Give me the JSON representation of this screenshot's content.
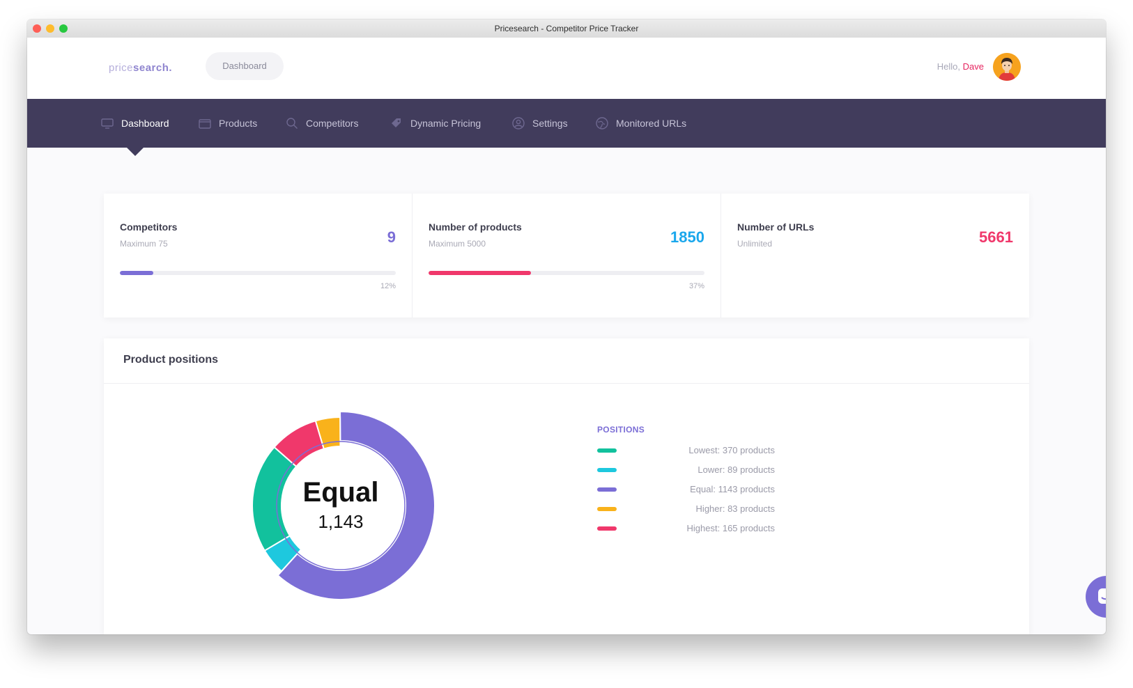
{
  "window": {
    "title": "Pricesearch - Competitor Price Tracker"
  },
  "header": {
    "logo_light": "price",
    "logo_bold": "search.",
    "pill_label": "Dashboard",
    "greeting": "Hello,",
    "user_name": "Dave",
    "avatar_icon": "user-avatar"
  },
  "nav": {
    "items": [
      {
        "label": "Dashboard",
        "icon": "monitor-icon",
        "active": true
      },
      {
        "label": "Products",
        "icon": "box-icon",
        "active": false
      },
      {
        "label": "Competitors",
        "icon": "search-icon",
        "active": false
      },
      {
        "label": "Dynamic Pricing",
        "icon": "price-tag-icon",
        "active": false
      },
      {
        "label": "Settings",
        "icon": "user-circle-icon",
        "active": false
      },
      {
        "label": "Monitored URLs",
        "icon": "globe-icon",
        "active": false
      }
    ]
  },
  "stats": [
    {
      "title": "Competitors",
      "subtitle": "Maximum 75",
      "value": "9",
      "color": "#7b6ed6",
      "progress": 0.12,
      "percent_label": "12%"
    },
    {
      "title": "Number of products",
      "subtitle": "Maximum 5000",
      "value": "1850",
      "color": "#1aa7ec",
      "bar_color": "#f0386b",
      "progress": 0.37,
      "percent_label": "37%"
    },
    {
      "title": "Number of URLs",
      "subtitle": "Unlimited",
      "value": "5661",
      "color": "#f0386b"
    }
  ],
  "positions": {
    "title": "Product positions",
    "legend_title": "POSITIONS",
    "center_label": "Equal",
    "center_value": "1,143",
    "legend": [
      {
        "label": "Lowest: 370 products",
        "color": "#12c19d"
      },
      {
        "label": "Lower: 89 products",
        "color": "#1ec8de"
      },
      {
        "label": "Equal: 1143 products",
        "color": "#7b6ed6"
      },
      {
        "label": "Higher: 83 products",
        "color": "#f9b21b"
      },
      {
        "label": "Highest: 165 products",
        "color": "#f0386b"
      }
    ]
  },
  "chart_data": {
    "type": "pie",
    "categories": [
      "Lowest",
      "Lower",
      "Equal",
      "Higher",
      "Highest"
    ],
    "values": [
      370,
      89,
      1143,
      83,
      165
    ],
    "colors": [
      "#12c19d",
      "#1ec8de",
      "#7b6ed6",
      "#f9b21b",
      "#f0386b"
    ],
    "title": ""
  }
}
